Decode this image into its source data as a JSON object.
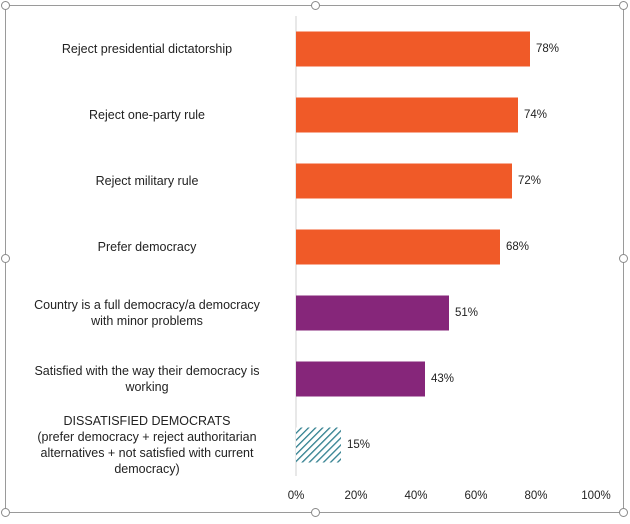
{
  "chart_data": {
    "type": "bar",
    "orientation": "horizontal",
    "categories": [
      "Reject presidential dictatorship",
      "Reject one-party rule",
      "Reject military rule",
      "Prefer democracy",
      "Country is a full democracy/a democracy with minor problems",
      "Satisfied with the way their democracy is working",
      "DISSATISFIED DEMOCRATS (prefer democracy + reject authoritarian alternatives + not satisfied with current democracy)"
    ],
    "category_lines": [
      [
        "Reject presidential dictatorship"
      ],
      [
        "Reject one-party rule"
      ],
      [
        "Reject military rule"
      ],
      [
        "Prefer democracy"
      ],
      [
        "Country is a full democracy/a democracy",
        "with minor problems"
      ],
      [
        "Satisfied with the way their democracy is",
        "working"
      ],
      [
        "DISSATISFIED DEMOCRATS",
        "(prefer democracy + reject authoritarian",
        "alternatives + not satisfied with current",
        "democracy)"
      ]
    ],
    "values": [
      78,
      74,
      72,
      68,
      51,
      43,
      15
    ],
    "value_labels": [
      "78%",
      "74%",
      "72%",
      "68%",
      "51%",
      "43%",
      "15%"
    ],
    "bar_colors": [
      "#f05a28",
      "#f05a28",
      "#f05a28",
      "#f05a28",
      "#86267a",
      "#86267a",
      "hatched-teal"
    ],
    "hatch_color": "#2f7e8e",
    "xlim": [
      0,
      100
    ],
    "x_ticks": [
      "0%",
      "20%",
      "40%",
      "60%",
      "80%",
      "100%"
    ],
    "grid": false,
    "legend": "none"
  }
}
